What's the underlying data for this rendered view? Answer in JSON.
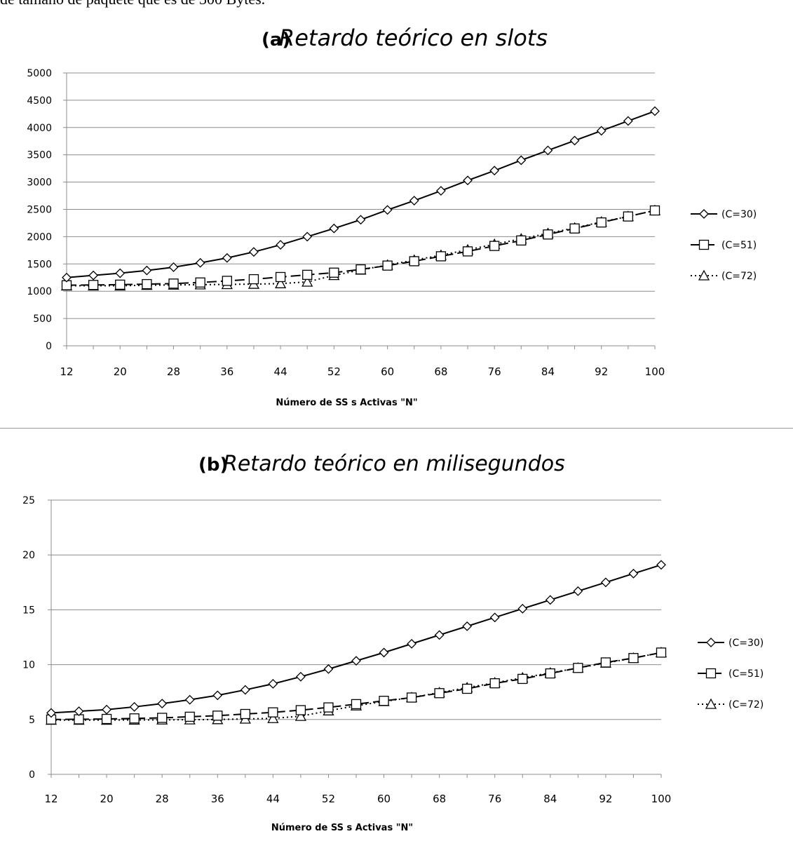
{
  "header_text": "de tamaño de paquete que es de 300 Bytes.",
  "chart_data": [
    {
      "type": "line",
      "panel_label": "(a)",
      "title": "Retardo teórico en slots",
      "xlabel": "Número de SS s Activas  \"N\"",
      "ylabel": "",
      "x": [
        12,
        16,
        20,
        24,
        28,
        32,
        36,
        40,
        44,
        48,
        52,
        56,
        60,
        64,
        68,
        72,
        76,
        80,
        84,
        88,
        92,
        96,
        100
      ],
      "xticks": [
        12,
        20,
        28,
        36,
        44,
        52,
        60,
        68,
        76,
        84,
        92,
        100
      ],
      "ylim": [
        0,
        5000
      ],
      "yticks": [
        0,
        500,
        1000,
        1500,
        2000,
        2500,
        3000,
        3500,
        4000,
        4500,
        5000
      ],
      "grid": "horizontal",
      "legend_position": "right",
      "series": [
        {
          "name": "(C=30)",
          "marker": "diamond",
          "dash": "solid",
          "values": [
            1250,
            1290,
            1330,
            1380,
            1440,
            1520,
            1610,
            1720,
            1850,
            2000,
            2150,
            2310,
            2490,
            2660,
            2840,
            3030,
            3210,
            3400,
            3580,
            3760,
            3940,
            4120,
            4300
          ]
        },
        {
          "name": "(C=51)",
          "marker": "square",
          "dash": "dashed",
          "values": [
            1110,
            1115,
            1120,
            1130,
            1140,
            1160,
            1190,
            1220,
            1260,
            1300,
            1340,
            1400,
            1470,
            1550,
            1640,
            1730,
            1830,
            1930,
            2040,
            2150,
            2260,
            2370,
            2480
          ]
        },
        {
          "name": "(C=72)",
          "marker": "triangle",
          "dash": "dotted",
          "values": [
            1100,
            1100,
            1100,
            1110,
            1115,
            1120,
            1125,
            1130,
            1140,
            1170,
            1290,
            1390,
            1480,
            1570,
            1660,
            1760,
            1860,
            1960,
            2060,
            2160,
            2270,
            2370,
            2480
          ]
        }
      ]
    },
    {
      "type": "line",
      "panel_label": "(b)",
      "title": "Retardo teórico en milisegundos",
      "xlabel": "Número de SS s Activas  \"N\"",
      "ylabel": "",
      "x": [
        12,
        16,
        20,
        24,
        28,
        32,
        36,
        40,
        44,
        48,
        52,
        56,
        60,
        64,
        68,
        72,
        76,
        80,
        84,
        88,
        92,
        96,
        100
      ],
      "xticks": [
        12,
        20,
        28,
        36,
        44,
        52,
        60,
        68,
        76,
        84,
        92,
        100
      ],
      "ylim": [
        0,
        25
      ],
      "yticks": [
        0,
        5,
        10,
        15,
        20,
        25
      ],
      "grid": "horizontal",
      "legend_position": "right",
      "series": [
        {
          "name": "(C=30)",
          "marker": "diamond",
          "dash": "solid",
          "values": [
            5.6,
            5.75,
            5.9,
            6.15,
            6.45,
            6.8,
            7.2,
            7.7,
            8.25,
            8.9,
            9.6,
            10.35,
            11.1,
            11.9,
            12.7,
            13.5,
            14.3,
            15.1,
            15.9,
            16.7,
            17.5,
            18.3,
            19.1
          ]
        },
        {
          "name": "(C=51)",
          "marker": "square",
          "dash": "dashed",
          "values": [
            5.0,
            5.02,
            5.05,
            5.1,
            5.15,
            5.25,
            5.35,
            5.5,
            5.65,
            5.85,
            6.1,
            6.4,
            6.7,
            7.0,
            7.4,
            7.8,
            8.3,
            8.7,
            9.2,
            9.7,
            10.2,
            10.6,
            11.1
          ]
        },
        {
          "name": "(C=72)",
          "marker": "triangle",
          "dash": "dotted",
          "values": [
            4.95,
            4.95,
            4.95,
            4.96,
            4.97,
            4.98,
            5.0,
            5.05,
            5.1,
            5.3,
            5.8,
            6.25,
            6.65,
            7.0,
            7.45,
            7.9,
            8.35,
            8.8,
            9.25,
            9.7,
            10.15,
            10.6,
            11.1
          ]
        }
      ]
    }
  ]
}
